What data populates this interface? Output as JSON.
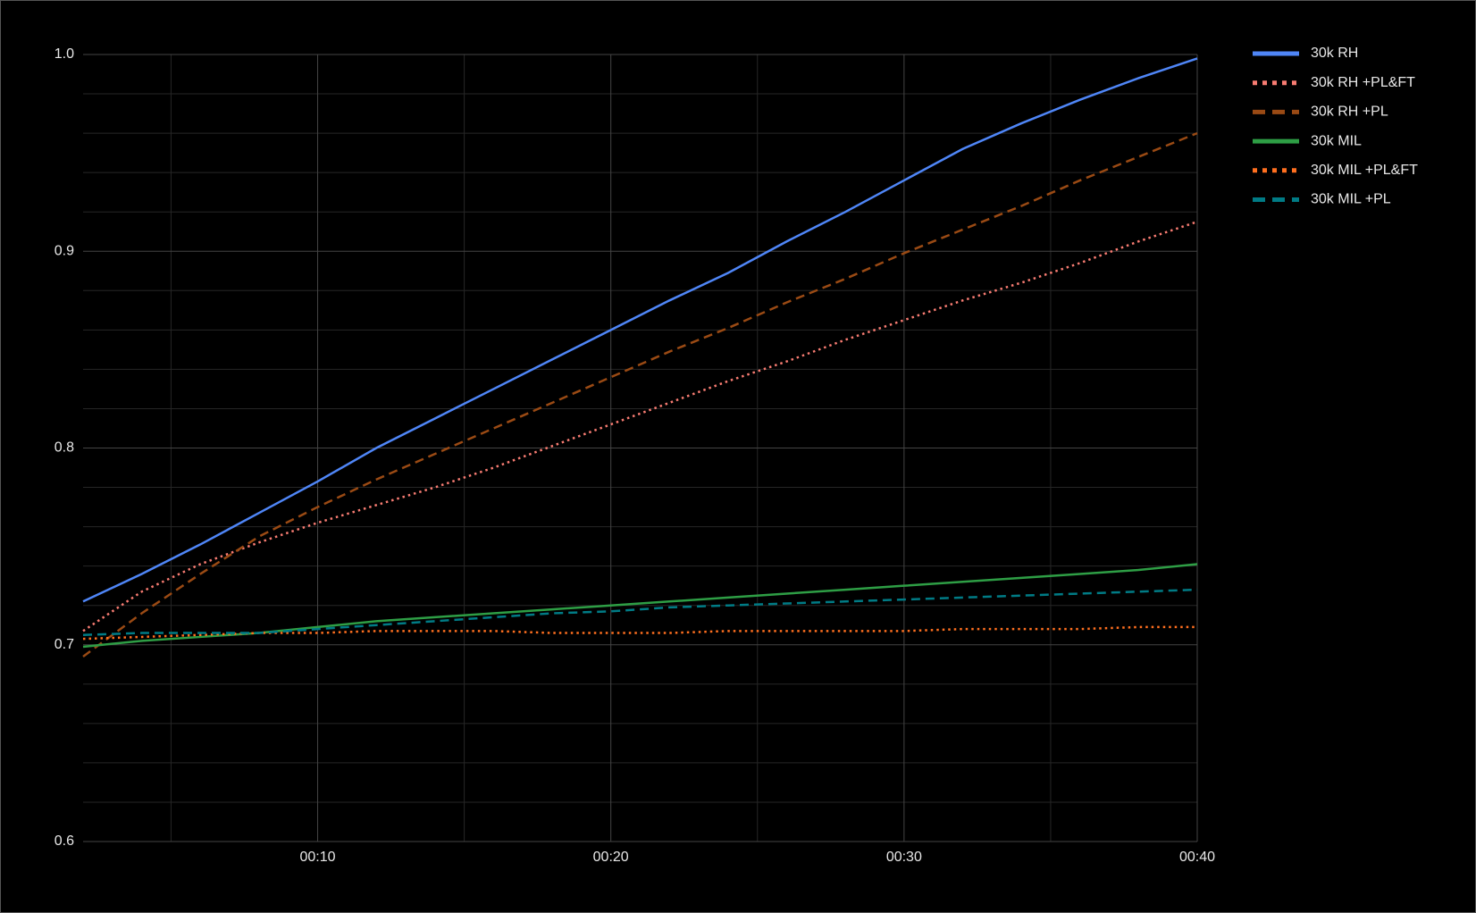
{
  "chart_data": {
    "type": "line",
    "x": [
      2,
      4,
      6,
      8,
      10,
      12,
      14,
      16,
      18,
      20,
      22,
      24,
      26,
      28,
      30,
      32,
      34,
      36,
      38,
      40
    ],
    "xlim": [
      2,
      40
    ],
    "xticks": [
      {
        "value": 10,
        "label": "00:10"
      },
      {
        "value": 20,
        "label": "00:20"
      },
      {
        "value": 30,
        "label": "00:30"
      },
      {
        "value": 40,
        "label": "00:40"
      }
    ],
    "minor_xticks": [
      5,
      15,
      25,
      35
    ],
    "ylim": [
      0.6,
      1.0
    ],
    "yticks": [
      0.6,
      0.7,
      0.8,
      0.9,
      {
        "value": 1,
        "label": "1.0"
      }
    ],
    "minor_yticks": [
      0.62,
      0.64,
      0.66,
      0.68,
      0.72,
      0.74,
      0.76,
      0.78,
      0.82,
      0.84,
      0.86,
      0.88,
      0.92,
      0.94,
      0.96,
      0.98
    ],
    "grid": true,
    "legend": "right",
    "series": [
      {
        "name": "30k RH",
        "color": "#4f86f7",
        "dash": "solid",
        "values": [
          0.722,
          0.736,
          0.751,
          0.767,
          0.783,
          0.8,
          0.815,
          0.83,
          0.845,
          0.86,
          0.875,
          0.889,
          0.905,
          0.92,
          0.936,
          0.952,
          0.965,
          0.977,
          0.988,
          0.998
        ]
      },
      {
        "name": "30k RH +PL&FT",
        "color": "#f87c72",
        "dash": "dotted",
        "values": [
          0.707,
          0.727,
          0.741,
          0.752,
          0.762,
          0.771,
          0.78,
          0.79,
          0.801,
          0.812,
          0.823,
          0.834,
          0.844,
          0.855,
          0.865,
          0.875,
          0.884,
          0.894,
          0.905,
          0.915
        ]
      },
      {
        "name": "30k RH +PL",
        "color": "#9a4a14",
        "dash": "dashed",
        "values": [
          0.694,
          0.716,
          0.736,
          0.755,
          0.77,
          0.784,
          0.797,
          0.81,
          0.823,
          0.836,
          0.849,
          0.861,
          0.874,
          0.886,
          0.899,
          0.911,
          0.923,
          0.936,
          0.948,
          0.96
        ]
      },
      {
        "name": "30k MIL",
        "color": "#2e9e45",
        "dash": "solid",
        "values": [
          0.699,
          0.702,
          0.704,
          0.706,
          0.709,
          0.712,
          0.714,
          0.716,
          0.718,
          0.72,
          0.722,
          0.724,
          0.726,
          0.728,
          0.73,
          0.732,
          0.734,
          0.736,
          0.738,
          0.741
        ]
      },
      {
        "name": "30k MIL +PL&FT",
        "color": "#ff6f1f",
        "dash": "dotted",
        "values": [
          0.703,
          0.704,
          0.705,
          0.706,
          0.706,
          0.707,
          0.707,
          0.707,
          0.706,
          0.706,
          0.706,
          0.707,
          0.707,
          0.707,
          0.707,
          0.708,
          0.708,
          0.708,
          0.709,
          0.709
        ]
      },
      {
        "name": "30k MIL +PL",
        "color": "#007b85",
        "dash": "dashed",
        "values": [
          0.705,
          0.706,
          0.706,
          0.706,
          0.708,
          0.71,
          0.712,
          0.714,
          0.716,
          0.717,
          0.719,
          0.72,
          0.721,
          0.722,
          0.723,
          0.724,
          0.725,
          0.726,
          0.727,
          0.728
        ]
      }
    ]
  }
}
